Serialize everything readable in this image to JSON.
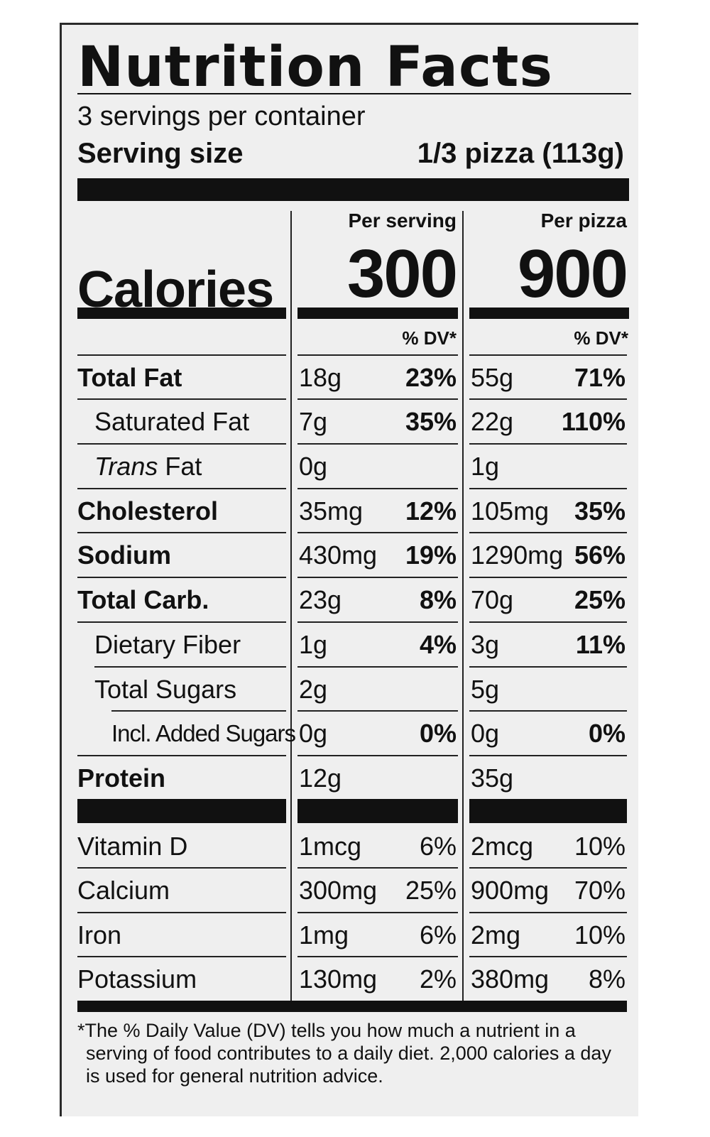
{
  "label": {
    "title": "Nutrition Facts",
    "servings_per_container": "3 servings per container",
    "serving_size_label": "Serving size",
    "serving_size_value": "1/3 pizza (113g)",
    "calories_label": "Calories",
    "columns": [
      {
        "heading": "Per serving",
        "calories": "300",
        "dv_heading": "% DV*"
      },
      {
        "heading": "Per pizza",
        "calories": "900",
        "dv_heading": "% DV*"
      }
    ],
    "nutrients": [
      {
        "name": "Total Fat",
        "serving_amount": "18g",
        "serving_dv": "23%",
        "pizza_amount": "55g",
        "pizza_dv": "71%"
      },
      {
        "name": "Saturated Fat",
        "serving_amount": "7g",
        "serving_dv": "35%",
        "pizza_amount": "22g",
        "pizza_dv": "110%"
      },
      {
        "name_italic": "Trans",
        "name_rest": " Fat",
        "serving_amount": "0g",
        "serving_dv": "",
        "pizza_amount": "1g",
        "pizza_dv": ""
      },
      {
        "name": "Cholesterol",
        "serving_amount": "35mg",
        "serving_dv": "12%",
        "pizza_amount": "105mg",
        "pizza_dv": "35%"
      },
      {
        "name": "Sodium",
        "serving_amount": "430mg",
        "serving_dv": "19%",
        "pizza_amount": "1290mg",
        "pizza_dv": "56%"
      },
      {
        "name": "Total Carb.",
        "serving_amount": "23g",
        "serving_dv": "8%",
        "pizza_amount": "70g",
        "pizza_dv": "25%"
      },
      {
        "name": "Dietary Fiber",
        "serving_amount": "1g",
        "serving_dv": "4%",
        "pizza_amount": "3g",
        "pizza_dv": "11%"
      },
      {
        "name": "Total Sugars",
        "serving_amount": "2g",
        "serving_dv": "",
        "pizza_amount": "5g",
        "pizza_dv": ""
      },
      {
        "name": "Incl. Added Sugars",
        "serving_amount": "0g",
        "serving_dv": "0%",
        "pizza_amount": "0g",
        "pizza_dv": "0%"
      },
      {
        "name": "Protein",
        "serving_amount": "12g",
        "serving_dv": "",
        "pizza_amount": "35g",
        "pizza_dv": ""
      }
    ],
    "vitamins": [
      {
        "name": "Vitamin D",
        "serving_amount": "1mcg",
        "serving_dv": "6%",
        "pizza_amount": "2mcg",
        "pizza_dv": "10%"
      },
      {
        "name": "Calcium",
        "serving_amount": "300mg",
        "serving_dv": "25%",
        "pizza_amount": "900mg",
        "pizza_dv": "70%"
      },
      {
        "name": "Iron",
        "serving_amount": "1mg",
        "serving_dv": "6%",
        "pizza_amount": "2mg",
        "pizza_dv": "10%"
      },
      {
        "name": "Potassium",
        "serving_amount": "130mg",
        "serving_dv": "2%",
        "pizza_amount": "380mg",
        "pizza_dv": "8%"
      }
    ],
    "footnote_lines": [
      "*The % Daily Value (DV) tells you how much a nutrient in a",
      "serving of food contributes to a daily diet. 2,000 calories a day",
      "is used for general nutrition advice."
    ]
  }
}
